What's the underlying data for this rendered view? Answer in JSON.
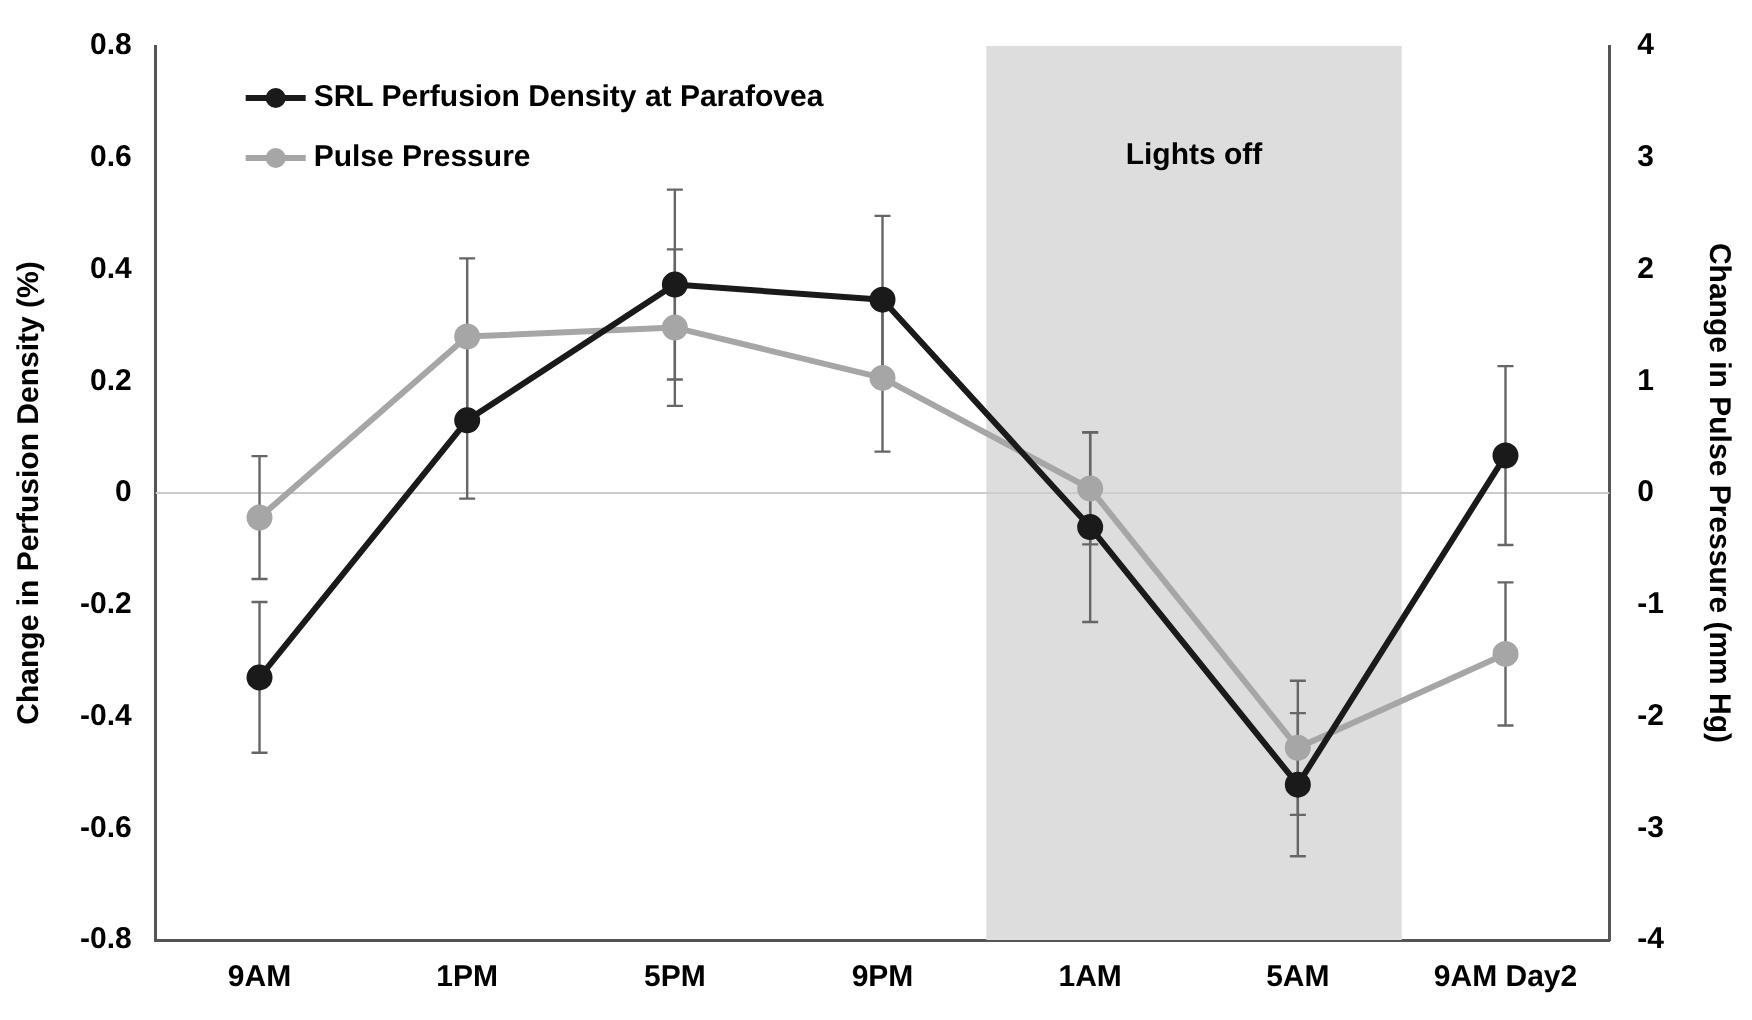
{
  "chart_data": {
    "type": "line",
    "ylabel": "Change in Perfusion Density (%)",
    "y2label": "Change in Pulse Pressure (mm Hg)",
    "categories": [
      "9AM",
      "1PM",
      "5PM",
      "9PM",
      "1AM",
      "5AM",
      "9AM Day2"
    ],
    "series": [
      {
        "name": "SRL Perfusion Density at Parafovea",
        "color": "#1a1a1a",
        "values": [
          -0.33,
          0.13,
          0.373,
          0.346,
          -0.061,
          -0.522,
          0.067
        ],
        "errors": [
          0.135,
          0.14,
          0.17,
          0.15,
          0.17,
          0.128,
          0.16
        ]
      },
      {
        "name": "Pulse Pressure",
        "color": "#a6a6a6",
        "axis": "y2",
        "values": [
          -0.22,
          1.4,
          1.48,
          1.03,
          0.04,
          -2.28,
          -1.44
        ],
        "errors": [
          0.55,
          0.7,
          0.7,
          0.66,
          0.5,
          0.6,
          0.64
        ]
      }
    ],
    "ylim": [
      -0.8,
      0.8
    ],
    "yticks": [
      {
        "value": -0.8,
        "label": "-0.8"
      },
      {
        "value": -0.6,
        "label": "-0.6"
      },
      {
        "value": -0.4,
        "label": "-0.4"
      },
      {
        "value": -0.2,
        "label": "-0.2"
      },
      0,
      {
        "value": 0.2,
        "label": "0.2"
      },
      {
        "value": 0.4,
        "label": "0.4"
      },
      {
        "value": 0.6,
        "label": "0.6"
      },
      {
        "value": 0.8,
        "label": "0.8"
      }
    ],
    "y2lim": [
      -4,
      4
    ],
    "y2ticks": [
      -4,
      -3,
      -2,
      -1,
      0,
      1,
      2,
      3,
      4
    ],
    "bands": [
      {
        "axis": "x",
        "from": "1AM",
        "to": "5AM",
        "label": "Lights off",
        "color": "#dddddd"
      }
    ],
    "ref_lines": [
      {
        "axis": "y",
        "value": 0,
        "color": "#cccccc"
      }
    ],
    "legend": "top left",
    "grid": false,
    "marker": "circle",
    "line_style": "solid"
  }
}
